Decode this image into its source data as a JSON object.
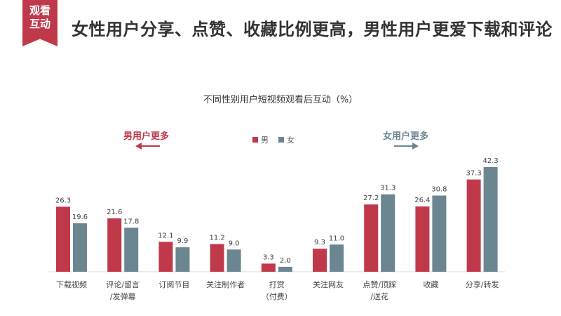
{
  "tag": {
    "line1": "观看",
    "line2": "互动"
  },
  "headline": "女性用户分享、点赞、收藏比例更高，男性用户更爱下载和评论",
  "annotations": {
    "male": "男用户更多",
    "female": "女用户更多"
  },
  "colors": {
    "male": "#c0394b",
    "female": "#6b8691",
    "brand": "#c0394b"
  },
  "chart_data": {
    "type": "bar",
    "title": "不同性别用户短视频观看后互动（%）",
    "categories": [
      [
        "下载视频"
      ],
      [
        "评论/留言",
        "/发弹幕"
      ],
      [
        "订阅节目"
      ],
      [
        "关注制作者"
      ],
      [
        "打赏",
        "（付费）"
      ],
      [
        "关注网友"
      ],
      [
        "点赞/顶踩",
        "/送花"
      ],
      [
        "收藏"
      ],
      [
        "分享/转发"
      ]
    ],
    "series": [
      {
        "name": "男",
        "color": "#c0394b",
        "values": [
          26.3,
          21.6,
          12.1,
          11.2,
          3.3,
          9.3,
          27.2,
          26.4,
          37.3
        ]
      },
      {
        "name": "女",
        "color": "#6b8691",
        "values": [
          19.6,
          17.8,
          9.9,
          9.0,
          2.0,
          11.0,
          31.3,
          30.8,
          42.3
        ]
      }
    ],
    "ylim": [
      0,
      43
    ],
    "legend": "top-center",
    "grid": false
  }
}
